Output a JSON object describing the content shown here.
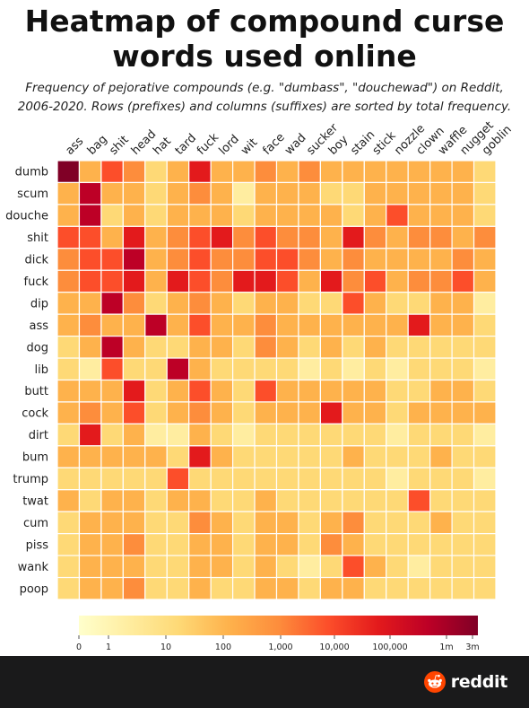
{
  "title_line1": "Heatmap of compound curse",
  "title_line2": "words used online",
  "subtitle_line1": "Frequency of pejorative compounds (e.g. \"dumbass\", \"douchewad\") on Reddit,",
  "subtitle_line2": "2006-2020. Rows (prefixes) and columns (suffixes) are sorted by total frequency.",
  "brand": {
    "name": "reddit",
    "footer_color": "#1a1a1b",
    "logo_color": "#ff4500"
  },
  "chart_data": {
    "type": "heatmap",
    "columns": [
      "ass",
      "bag",
      "shit",
      "head",
      "hat",
      "tard",
      "fuck",
      "lord",
      "wit",
      "face",
      "wad",
      "sucker",
      "boy",
      "stain",
      "stick",
      "nozzle",
      "clown",
      "waffle",
      "nugget",
      "goblin"
    ],
    "rows": [
      "dumb",
      "scum",
      "douche",
      "shit",
      "dick",
      "fuck",
      "dip",
      "ass",
      "dog",
      "lib",
      "butt",
      "cock",
      "dirt",
      "bum",
      "trump",
      "twat",
      "cum",
      "piss",
      "wank",
      "poop"
    ],
    "scale": "log",
    "colorbar": {
      "ticks": [
        "0",
        "1",
        "10",
        "100",
        "1,000",
        "10,000",
        "100,000",
        "1m",
        "3m"
      ],
      "colors": [
        "#ffffcc",
        "#ffeda0",
        "#fed976",
        "#feb24c",
        "#fd8d3c",
        "#fc4e2a",
        "#e31a1c",
        "#bd0026",
        "#800026"
      ]
    },
    "levels": [
      [
        8,
        3,
        5,
        4,
        2,
        3,
        6,
        3,
        3,
        4,
        3,
        4,
        3,
        3,
        3,
        3,
        3,
        3,
        3,
        2
      ],
      [
        3,
        7,
        3,
        3,
        2,
        3,
        4,
        3,
        1,
        3,
        3,
        3,
        2,
        2,
        3,
        3,
        3,
        3,
        3,
        2
      ],
      [
        3,
        7,
        2,
        3,
        2,
        3,
        3,
        3,
        2,
        3,
        3,
        3,
        3,
        2,
        3,
        5,
        3,
        3,
        3,
        2
      ],
      [
        5,
        5,
        3,
        6,
        3,
        4,
        5,
        6,
        4,
        5,
        4,
        4,
        3,
        6,
        4,
        3,
        4,
        4,
        3,
        4
      ],
      [
        4,
        5,
        5,
        7,
        3,
        4,
        5,
        4,
        4,
        5,
        5,
        4,
        3,
        4,
        3,
        3,
        3,
        3,
        4,
        3
      ],
      [
        4,
        5,
        5,
        6,
        3,
        6,
        5,
        4,
        6,
        6,
        5,
        3,
        6,
        4,
        5,
        3,
        4,
        4,
        5,
        3
      ],
      [
        3,
        3,
        7,
        4,
        2,
        3,
        4,
        3,
        2,
        3,
        3,
        2,
        2,
        5,
        3,
        2,
        2,
        3,
        3,
        1
      ],
      [
        3,
        4,
        3,
        3,
        7,
        3,
        5,
        3,
        3,
        4,
        3,
        3,
        3,
        3,
        3,
        3,
        6,
        3,
        3,
        2
      ],
      [
        2,
        3,
        7,
        3,
        2,
        2,
        3,
        3,
        2,
        4,
        3,
        2,
        3,
        2,
        3,
        2,
        2,
        2,
        2,
        2
      ],
      [
        2,
        1,
        5,
        2,
        2,
        7,
        3,
        2,
        2,
        2,
        2,
        1,
        2,
        1,
        2,
        1,
        2,
        2,
        2,
        1
      ],
      [
        3,
        3,
        3,
        6,
        2,
        3,
        5,
        3,
        2,
        5,
        3,
        3,
        3,
        3,
        3,
        2,
        2,
        3,
        3,
        2
      ],
      [
        3,
        4,
        3,
        5,
        2,
        3,
        4,
        3,
        2,
        3,
        3,
        3,
        6,
        3,
        3,
        2,
        3,
        3,
        3,
        3
      ],
      [
        2,
        6,
        2,
        3,
        1,
        1,
        3,
        2,
        1,
        2,
        2,
        2,
        2,
        2,
        2,
        1,
        2,
        2,
        2,
        1
      ],
      [
        3,
        3,
        3,
        3,
        3,
        2,
        6,
        3,
        2,
        2,
        2,
        2,
        2,
        3,
        2,
        2,
        2,
        3,
        2,
        2
      ],
      [
        2,
        2,
        2,
        2,
        2,
        5,
        2,
        2,
        2,
        2,
        2,
        2,
        2,
        2,
        2,
        1,
        2,
        2,
        2,
        1
      ],
      [
        3,
        2,
        3,
        3,
        2,
        3,
        3,
        2,
        2,
        3,
        2,
        2,
        2,
        2,
        2,
        2,
        5,
        2,
        2,
        2
      ],
      [
        2,
        3,
        3,
        3,
        2,
        2,
        4,
        3,
        2,
        3,
        3,
        2,
        3,
        4,
        2,
        2,
        2,
        3,
        2,
        2
      ],
      [
        2,
        3,
        3,
        4,
        2,
        2,
        3,
        3,
        2,
        3,
        3,
        2,
        4,
        3,
        2,
        2,
        2,
        2,
        2,
        2
      ],
      [
        2,
        3,
        3,
        3,
        2,
        2,
        3,
        3,
        2,
        3,
        2,
        1,
        2,
        5,
        3,
        2,
        1,
        2,
        2,
        2
      ],
      [
        2,
        3,
        3,
        4,
        2,
        2,
        3,
        2,
        2,
        3,
        3,
        2,
        3,
        3,
        2,
        2,
        2,
        2,
        2,
        2
      ]
    ]
  }
}
